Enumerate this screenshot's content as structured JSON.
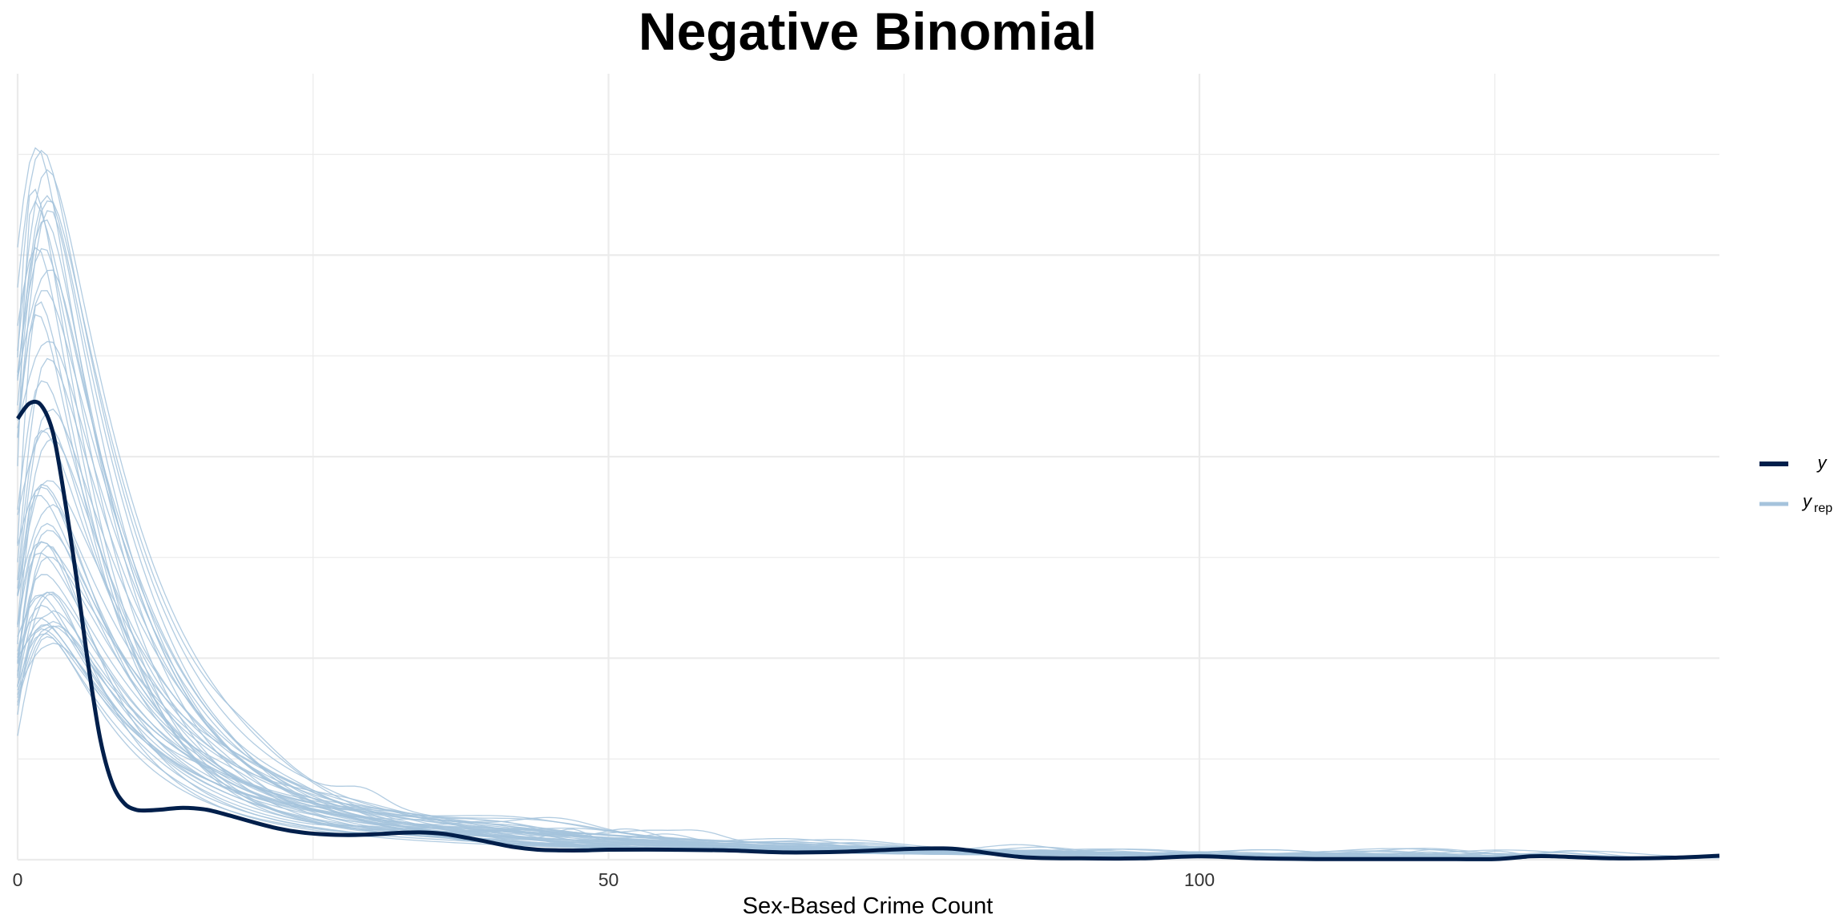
{
  "chart_data": {
    "type": "line",
    "title": "Negative Binomial",
    "xlabel": "Sex-Based Crime Count",
    "ylabel": "",
    "xlim": [
      0,
      144
    ],
    "ylim": [
      0,
      0.118
    ],
    "x_ticks": [
      0,
      50,
      100
    ],
    "x_tick_labels": [
      "0",
      "50",
      "100"
    ],
    "grid": true,
    "legend_position": "right",
    "colors": {
      "y": "#011f4b",
      "y_rep": "#a5c3dc",
      "grid": "#ebebeb"
    },
    "legend": [
      {
        "key": "y",
        "label": "y",
        "subscript": "",
        "color": "#011f4b"
      },
      {
        "key": "y_rep",
        "label": "y",
        "subscript": "rep",
        "color": "#a5c3dc"
      }
    ],
    "y": {
      "name": "y",
      "x": [
        0,
        1,
        2,
        3,
        4,
        5,
        6,
        7,
        8,
        9,
        10,
        11,
        12,
        14,
        16,
        18,
        20,
        22,
        24,
        26,
        28,
        30,
        32,
        34,
        36,
        38,
        40,
        42,
        44,
        46,
        48,
        50,
        55,
        60,
        65,
        70,
        75,
        78,
        80,
        85,
        90,
        95,
        100,
        105,
        110,
        115,
        120,
        125,
        128,
        130,
        135,
        140,
        144
      ],
      "values": [
        0.0662,
        0.0685,
        0.0682,
        0.064,
        0.054,
        0.042,
        0.029,
        0.018,
        0.0115,
        0.0085,
        0.0075,
        0.0074,
        0.0075,
        0.0078,
        0.0075,
        0.0066,
        0.0056,
        0.0047,
        0.0041,
        0.0038,
        0.0037,
        0.0038,
        0.004,
        0.0041,
        0.0039,
        0.0033,
        0.0026,
        0.0019,
        0.0015,
        0.0014,
        0.0014,
        0.0015,
        0.0015,
        0.0014,
        0.0011,
        0.0012,
        0.0016,
        0.0017,
        0.0015,
        0.0004,
        0.0002,
        0.0002,
        0.0005,
        0.0002,
        0.0001,
        0.0001,
        0.0001,
        0.0001,
        0.0005,
        0.0005,
        0.0002,
        0.0003,
        0.0006
      ]
    }
  }
}
